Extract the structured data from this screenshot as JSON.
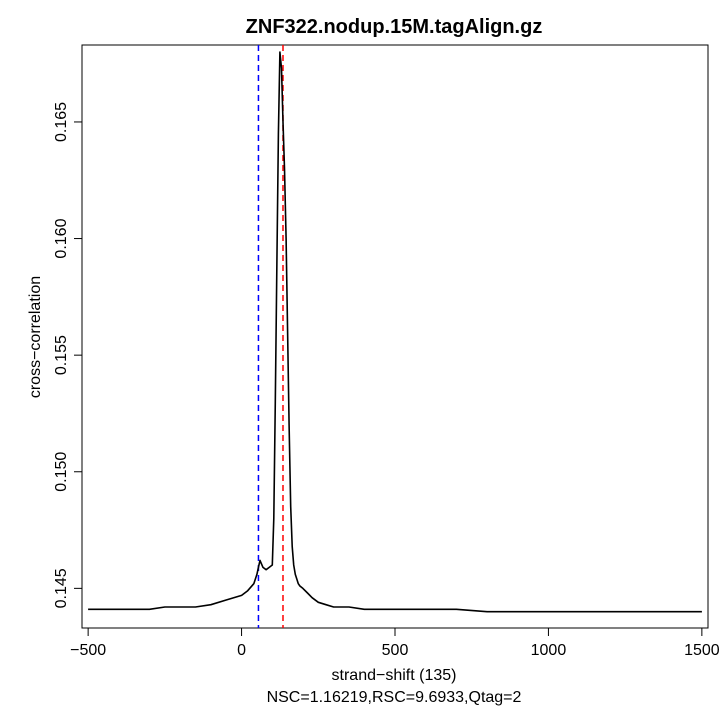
{
  "chart_data": {
    "type": "line",
    "title": "ZNF322.nodup.15M.tagAlign.gz",
    "xlabel": "strand−shift (135)",
    "ylabel": "cross−correlation",
    "footnote": "NSC=1.16219,RSC=9.6933,Qtag=2",
    "xlim": [
      -520,
      1520
    ],
    "ylim": [
      0.1433,
      0.1683
    ],
    "x_ticks": [
      -500,
      0,
      500,
      1000,
      1500
    ],
    "x_tick_labels": [
      "−500",
      "0",
      "500",
      "1000",
      "1500"
    ],
    "y_ticks": [
      0.145,
      0.15,
      0.155,
      0.16,
      0.165
    ],
    "y_tick_labels": [
      "0.145",
      "0.150",
      "0.155",
      "0.160",
      "0.165"
    ],
    "grid": false,
    "series": [
      {
        "color": "#000000",
        "x": [
          -500,
          -450,
          -400,
          -350,
          -300,
          -250,
          -200,
          -150,
          -100,
          -50,
          0,
          20,
          40,
          50,
          55,
          60,
          70,
          80,
          90,
          100,
          105,
          110,
          115,
          120,
          125,
          130,
          135,
          140,
          145,
          150,
          155,
          160,
          165,
          170,
          175,
          180,
          185,
          190,
          200,
          215,
          230,
          250,
          275,
          300,
          350,
          400,
          500,
          600,
          700,
          800,
          900,
          1000,
          1100,
          1200,
          1300,
          1400,
          1500
        ],
        "y": [
          0.1441,
          0.1441,
          0.1441,
          0.1441,
          0.1441,
          0.1442,
          0.1442,
          0.1442,
          0.1443,
          0.1445,
          0.1447,
          0.1449,
          0.1452,
          0.1456,
          0.1459,
          0.1462,
          0.1459,
          0.1458,
          0.1459,
          0.146,
          0.148,
          0.153,
          0.159,
          0.1645,
          0.168,
          0.1673,
          0.165,
          0.163,
          0.16,
          0.156,
          0.152,
          0.1485,
          0.1468,
          0.146,
          0.1456,
          0.1454,
          0.1452,
          0.1451,
          0.145,
          0.1448,
          0.1446,
          0.1444,
          0.1443,
          0.1442,
          0.1442,
          0.1441,
          0.1441,
          0.1441,
          0.1441,
          0.144,
          0.144,
          0.144,
          0.144,
          0.144,
          0.144,
          0.144,
          0.144
        ]
      }
    ],
    "vlines": [
      {
        "x": 55,
        "color": "#0000ff",
        "style": "dashed"
      },
      {
        "x": 135,
        "color": "#ff0000",
        "style": "dashed"
      }
    ]
  }
}
